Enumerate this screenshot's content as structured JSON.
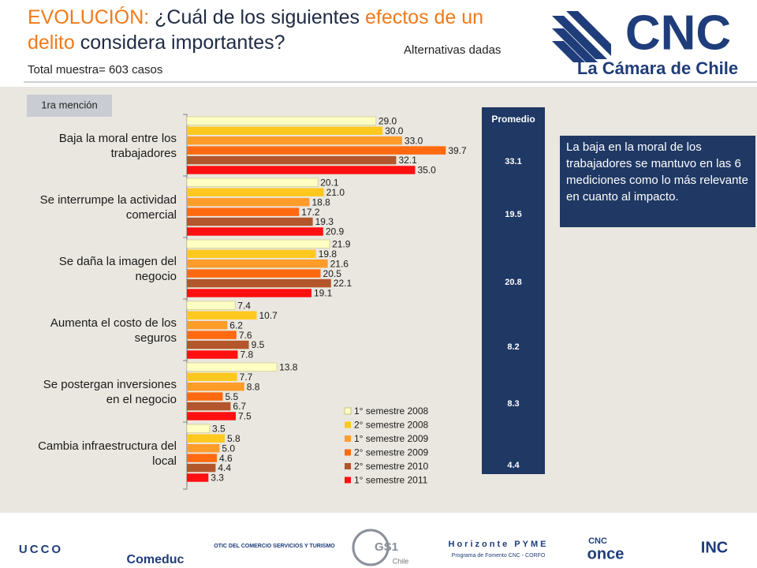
{
  "header": {
    "title_lines": [
      [
        {
          "text": "EVOLUCIÓN: ",
          "color": "#f07a1a"
        },
        {
          "text": "¿Cuál de los siguientes ",
          "color": "#1f2a44"
        },
        {
          "text": "efectos de un",
          "color": "#f07a1a"
        }
      ],
      [
        {
          "text": "delito",
          "color": "#f07a1a"
        },
        {
          "text": " considera importantes?",
          "color": "#1f2a44"
        }
      ]
    ],
    "subtitle": "Alternativas dadas",
    "sample": "Total muestra= 603 casos",
    "logo_main": "CNC",
    "logo_sub": "La Cámara de Chile"
  },
  "tab": "1ra mención",
  "chart_data": {
    "type": "hbar",
    "categories": [
      "Baja la moral entre los trabajadores",
      "Se interrumpe la actividad comercial",
      "Se daña la imagen del negocio",
      "Aumenta el costo de los seguros",
      "Se postergan inversiones en el negocio",
      "Cambia infraestructura del local"
    ],
    "series": [
      {
        "name": "1° semestre 2008",
        "color": "#ffffc4",
        "values": [
          29,
          20.1,
          21.9,
          7.4,
          13.8,
          3.5
        ],
        "value_labels": [
          "29.0",
          "20.1",
          "21.9",
          "7.4",
          "13.8",
          "3.5"
        ]
      },
      {
        "name": "2° semestre 2008",
        "color": "#ffc81e",
        "values": [
          30,
          21,
          19.8,
          10.7,
          7.7,
          5.8
        ],
        "value_labels": [
          "30.0",
          "21.0",
          "19.8",
          "10.7",
          "7.7",
          "5.8"
        ]
      },
      {
        "name": "1° semestre 2009",
        "color": "#ff9c2a",
        "values": [
          33,
          18.8,
          21.6,
          6.2,
          8.8,
          5
        ],
        "value_labels": [
          "33.0",
          "18.8",
          "21.6",
          "6.2",
          "8.8",
          "5.0"
        ]
      },
      {
        "name": "2° semestre 2009",
        "color": "#ff6a10",
        "values": [
          39.7,
          17.2,
          20.5,
          7.6,
          5.5,
          4.6
        ],
        "value_labels": [
          "39.7",
          "17.2",
          "20.5",
          "7.6",
          "5.5",
          "4.6"
        ]
      },
      {
        "name": "2° semestre 2010",
        "color": "#b3562c",
        "values": [
          32.1,
          19.3,
          22.1,
          9.5,
          6.7,
          4.4
        ],
        "value_labels": [
          "32.1",
          "19.3",
          "22.1",
          "9.5",
          "6.7",
          "4.4"
        ]
      },
      {
        "name": "1° semestre 2011",
        "color": "#ff1010",
        "values": [
          35,
          20.9,
          19.1,
          7.8,
          7.5,
          3.3
        ],
        "value_labels": [
          "35.0",
          "20.9",
          "19.1",
          "7.8",
          "7.5",
          "3.3"
        ]
      }
    ],
    "average_title": "Promedio",
    "average": [
      33.1,
      19.5,
      20.8,
      8.2,
      8.3,
      4.4
    ],
    "legend": "lower-right"
  },
  "note": "La baja en la moral de los trabajadores se mantuvo en las 6 mediciones como lo más relevante en cuanto al impacto.",
  "footer": [
    "UCCO",
    "Comeduc",
    "OTIC DEL COMERCIO SERVICIOS Y TURISMO",
    "GS1",
    "Chile",
    "Horizonte PYME",
    "Programa de Fomento CNC - CORFO",
    "CNC",
    "once",
    "INC"
  ]
}
